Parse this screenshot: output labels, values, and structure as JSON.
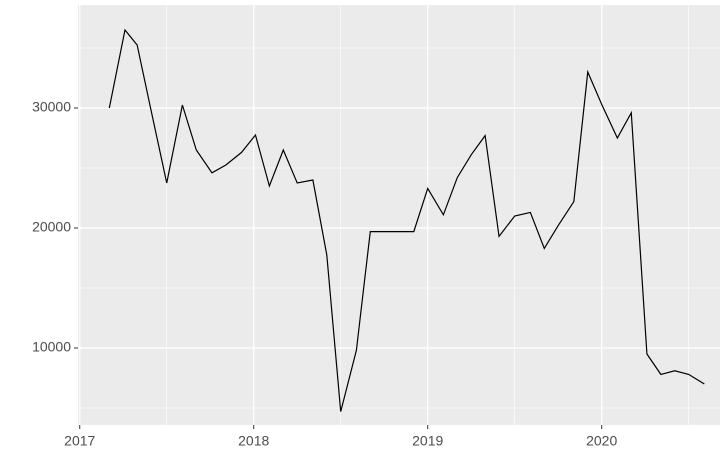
{
  "chart_data": {
    "type": "line",
    "x": [
      2017.17,
      2017.26,
      2017.33,
      2017.41,
      2017.5,
      2017.59,
      2017.67,
      2017.76,
      2017.84,
      2017.93,
      2018.01,
      2018.09,
      2018.17,
      2018.25,
      2018.34,
      2018.42,
      2018.5,
      2018.59,
      2018.67,
      2018.75,
      2018.84,
      2018.92,
      2019.0,
      2019.09,
      2019.17,
      2019.25,
      2019.33,
      2019.41,
      2019.5,
      2019.59,
      2019.67,
      2019.75,
      2019.84,
      2019.92,
      2020.0,
      2020.09,
      2020.17,
      2020.26,
      2020.34,
      2020.42,
      2020.5,
      2020.59
    ],
    "values": [
      30000,
      36500,
      35250,
      29800,
      23750,
      30250,
      26500,
      24600,
      25250,
      26300,
      27750,
      23500,
      26500,
      23750,
      24000,
      17750,
      4700,
      9800,
      19700,
      19700,
      19700,
      19700,
      23300,
      21100,
      24200,
      26100,
      27700,
      19300,
      21000,
      21300,
      18300,
      20200,
      22200,
      33000,
      30300,
      27500,
      29600,
      9500,
      7800,
      8100,
      7800,
      7000
    ],
    "color": "#000000",
    "xlim": [
      2016.99,
      2020.68
    ],
    "xticks": [
      2017,
      2018,
      2019,
      2020
    ],
    "ylim": [
      3583,
      38583
    ],
    "yticks": [
      10000,
      20000,
      30000
    ],
    "grid": true
  }
}
